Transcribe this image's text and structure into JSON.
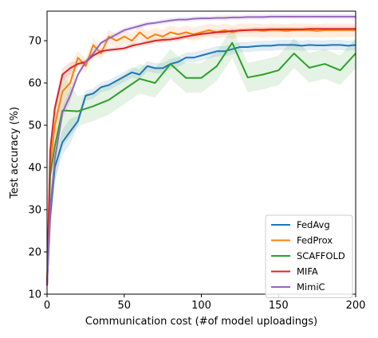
{
  "chart_data": {
    "type": "line",
    "xlabel": "Communication cost (#of model uploadings)",
    "ylabel": "Test accuracy (%)",
    "xlim": [
      0,
      200
    ],
    "ylim": [
      10,
      77
    ],
    "xticks": [
      0,
      50,
      100,
      150,
      200
    ],
    "yticks": [
      10,
      20,
      30,
      40,
      50,
      60,
      70
    ],
    "grid": false,
    "legend_position": "bottom-right",
    "series": [
      {
        "name": "FedAvg",
        "color": "#1f77b4",
        "x": [
          0,
          2,
          5,
          10,
          15,
          20,
          25,
          30,
          35,
          40,
          45,
          50,
          55,
          60,
          65,
          70,
          75,
          80,
          85,
          90,
          95,
          100,
          105,
          110,
          115,
          120,
          125,
          130,
          135,
          140,
          145,
          150,
          155,
          160,
          165,
          170,
          175,
          180,
          185,
          190,
          195,
          200
        ],
        "y": [
          12,
          28,
          40,
          46,
          48.5,
          51,
          57,
          57.5,
          59,
          59.5,
          60.5,
          61.5,
          62.5,
          62,
          64,
          63.5,
          63.5,
          64.5,
          65,
          66,
          66,
          66.5,
          67,
          67.5,
          67.5,
          68,
          68.5,
          68.5,
          68.7,
          68.8,
          68.8,
          69,
          69,
          69,
          68.8,
          69,
          68.9,
          68.9,
          69,
          69,
          68.8,
          69
        ]
      },
      {
        "name": "FedProx",
        "color": "#ff7f0e",
        "x": [
          0,
          2,
          5,
          10,
          15,
          20,
          25,
          30,
          35,
          40,
          45,
          50,
          55,
          60,
          65,
          70,
          75,
          80,
          85,
          90,
          95,
          100,
          105,
          110,
          115,
          120,
          125,
          130,
          135,
          140,
          145,
          150,
          155,
          160,
          165,
          170,
          175,
          180,
          185,
          190,
          195,
          200
        ],
        "y": [
          12,
          40,
          50,
          58,
          60,
          66,
          64,
          69,
          67,
          71,
          70,
          71,
          70,
          72,
          70.5,
          71.5,
          71,
          72,
          71.5,
          72,
          71.5,
          72,
          72.5,
          72,
          72.5,
          72,
          72.5,
          72.5,
          72.5,
          72.3,
          72.5,
          72.5,
          72.3,
          72.5,
          72.5,
          72.5,
          72.3,
          72.5,
          72.5,
          72.5,
          72.5,
          72.5
        ]
      },
      {
        "name": "SCAFFOLD",
        "color": "#2ca02c",
        "x": [
          0,
          2,
          5,
          10,
          20,
          30,
          40,
          50,
          60,
          70,
          80,
          90,
          100,
          110,
          120,
          130,
          140,
          150,
          160,
          170,
          180,
          190,
          200
        ],
        "y": [
          12,
          38,
          45,
          53.5,
          53.3,
          54.5,
          56,
          58.5,
          61,
          60,
          64.5,
          61.2,
          61.2,
          64,
          69.5,
          61.3,
          62,
          63,
          67,
          63.6,
          64.5,
          63,
          67
        ]
      },
      {
        "name": "MIFA",
        "color": "#d62728",
        "x": [
          0,
          2,
          5,
          10,
          15,
          20,
          25,
          30,
          35,
          40,
          45,
          50,
          55,
          60,
          65,
          70,
          75,
          80,
          85,
          90,
          95,
          100,
          105,
          110,
          115,
          120,
          125,
          130,
          135,
          140,
          145,
          150,
          155,
          160,
          165,
          170,
          175,
          180,
          185,
          190,
          195,
          200
        ],
        "y": [
          12,
          44,
          54,
          62,
          63.5,
          64.5,
          65,
          66.5,
          67.5,
          67.8,
          68,
          68.2,
          68.8,
          69.2,
          69.6,
          70,
          70.2,
          70.3,
          70.6,
          71,
          71.3,
          71.6,
          71.8,
          72,
          72.1,
          72.3,
          72.4,
          72.5,
          72.6,
          72.6,
          72.7,
          72.7,
          72.7,
          72.7,
          72.7,
          72.8,
          72.8,
          72.8,
          72.8,
          72.8,
          72.8,
          72.8
        ]
      },
      {
        "name": "MimiC",
        "color": "#9467bd",
        "x": [
          0,
          2,
          5,
          10,
          15,
          20,
          25,
          30,
          35,
          40,
          45,
          50,
          55,
          60,
          65,
          70,
          75,
          80,
          85,
          90,
          95,
          100,
          105,
          110,
          115,
          120,
          125,
          130,
          135,
          140,
          145,
          150,
          155,
          160,
          165,
          170,
          175,
          180,
          185,
          190,
          195,
          200
        ],
        "y": [
          12,
          30,
          42,
          53,
          57,
          62,
          65,
          67,
          69.5,
          70.5,
          71.5,
          72.5,
          73,
          73.5,
          74,
          74.2,
          74.5,
          74.8,
          75,
          75,
          75.2,
          75.3,
          75.3,
          75.4,
          75.4,
          75.5,
          75.5,
          75.6,
          75.6,
          75.6,
          75.7,
          75.7,
          75.7,
          75.7,
          75.7,
          75.7,
          75.7,
          75.7,
          75.7,
          75.7,
          75.7,
          75.7
        ]
      }
    ]
  }
}
